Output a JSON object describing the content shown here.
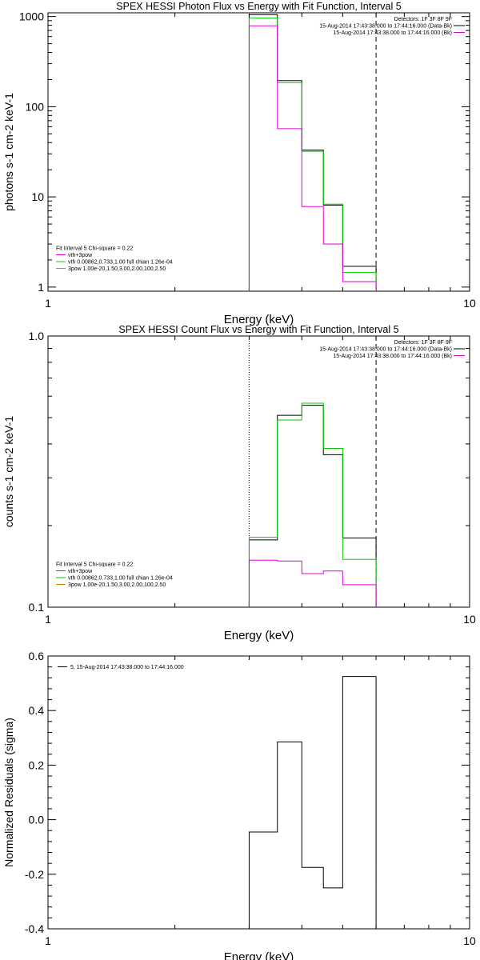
{
  "chart_data": [
    {
      "type": "line",
      "title": "SPEX HESSI Photon Flux vs Energy with Fit Function, Interval 5",
      "xlabel": "Energy (keV)",
      "ylabel": "photons s-1 cm-2 keV-1",
      "xscale": "log",
      "yscale": "log",
      "xlim": [
        1,
        10
      ],
      "ylim": [
        0.9,
        1100
      ],
      "x_ticks": [
        "1",
        "10"
      ],
      "y_ticks": [
        "1",
        "10",
        "100",
        "1000"
      ],
      "bin_edges": [
        3.0,
        3.5,
        4.0,
        4.5,
        5.0,
        6.0
      ],
      "series": [
        {
          "color": "#000000",
          "values": [
            1050,
            195,
            33,
            8.1,
            1.7
          ]
        },
        {
          "color": "#00cc00",
          "values": [
            960,
            185,
            32,
            8.3,
            1.45
          ]
        },
        {
          "color": "#dd00dd",
          "values": [
            790,
            57,
            7.8,
            3.0,
            1.15
          ]
        }
      ],
      "legend_top": {
        "lines": [
          {
            "text": "Detectors: 1F 3F 8F 9F",
            "color": ""
          },
          {
            "text": "15-Aug-2014 17:43:38.000 to 17:44:16.000 (Data-Bk)",
            "color": "#000000"
          },
          {
            "text": "15-Aug-2014 17:43:38.000 to 17:44:16.000 (Bk)",
            "color": "#dd00dd"
          }
        ]
      },
      "legend_bottom": {
        "lines": [
          {
            "text": "Fit Interval 5   Chi-square = 0.22",
            "color": ""
          },
          {
            "text": "vth+3pow",
            "color": "#dd00dd"
          },
          {
            "text": "vth 0.00862,0.733,1.00   full chian 1.26e-04",
            "color": "#00cc00"
          },
          {
            "text": "3pow 1.00e-20,1.50,3.00,2.00,100,2.50",
            "color": "#cc8800"
          }
        ]
      },
      "vlines": [
        {
          "x": 3.0,
          "style": "dotted",
          "color": "#00cc00"
        },
        {
          "x": 6.0,
          "style": "dashed",
          "color": "#000000"
        }
      ]
    },
    {
      "type": "line",
      "title": "SPEX HESSI Count Flux vs Energy with Fit Function, Interval 5",
      "xlabel": "Energy (keV)",
      "ylabel": "counts s-1 cm-2 keV-1",
      "xscale": "log",
      "yscale": "log",
      "xlim": [
        1,
        10
      ],
      "ylim": [
        0.1,
        1.0
      ],
      "x_ticks": [
        "1",
        "10"
      ],
      "y_ticks": [
        "0.1",
        "1.0"
      ],
      "bin_edges": [
        3.0,
        3.5,
        4.0,
        4.5,
        5.0,
        6.0
      ],
      "series": [
        {
          "color": "#000000",
          "values": [
            0.177,
            0.51,
            0.555,
            0.365,
            0.18
          ]
        },
        {
          "color": "#00cc00",
          "values": [
            0.181,
            0.49,
            0.565,
            0.385,
            0.15
          ]
        },
        {
          "color": "#dd00dd",
          "values": [
            0.149,
            0.148,
            0.133,
            0.136,
            0.121
          ]
        }
      ],
      "legend_top": {
        "lines": [
          {
            "text": "Detectors: 1F 3F 8F 9F",
            "color": ""
          },
          {
            "text": "15-Aug-2014 17:43:38.000 to 17:44:16.000 (Data-Bk)",
            "color": "#000000"
          },
          {
            "text": "15-Aug-2014 17:43:38.000 to 17:44:16.000 (Bk)",
            "color": "#dd00dd"
          }
        ]
      },
      "legend_bottom": {
        "lines": [
          {
            "text": "Fit Interval 5   Chi-square = 0.22",
            "color": ""
          },
          {
            "text": "vth+3pow",
            "color": "#dd00dd"
          },
          {
            "text": "vth 0.00862,0.733,1.00   full chian 1.26e-04",
            "color": "#00cc00"
          },
          {
            "text": "3pow 1.00e-20,1.50,3.00,2.00,100,2.50",
            "color": "#cc8800"
          }
        ]
      },
      "vlines": [
        {
          "x": 3.0,
          "style": "dotted",
          "color": "#000000"
        },
        {
          "x": 6.0,
          "style": "dashed",
          "color": "#000000"
        }
      ]
    },
    {
      "type": "line",
      "title": "",
      "xlabel": "Energy (keV)",
      "ylabel": "Normalized Residuals (sigma)",
      "xscale": "log",
      "yscale": "linear",
      "xlim": [
        1,
        10
      ],
      "ylim": [
        -0.4,
        0.6
      ],
      "x_ticks": [
        "1",
        "10"
      ],
      "y_ticks": [
        "-0.4",
        "-0.2",
        "0.0",
        "0.2",
        "0.4",
        "0.6"
      ],
      "bin_edges": [
        3.0,
        3.5,
        4.0,
        4.5,
        5.0,
        6.0
      ],
      "series": [
        {
          "color": "#000000",
          "values": [
            -0.045,
            0.285,
            -0.175,
            -0.25,
            0.525
          ]
        }
      ],
      "legend_top": {
        "lines": [
          {
            "text": "5, 15-Aug-2014 17:43:38.000 to 17:44:16.000",
            "color": "#000000"
          }
        ]
      },
      "legend_bottom": {
        "lines": []
      },
      "vlines": []
    }
  ]
}
